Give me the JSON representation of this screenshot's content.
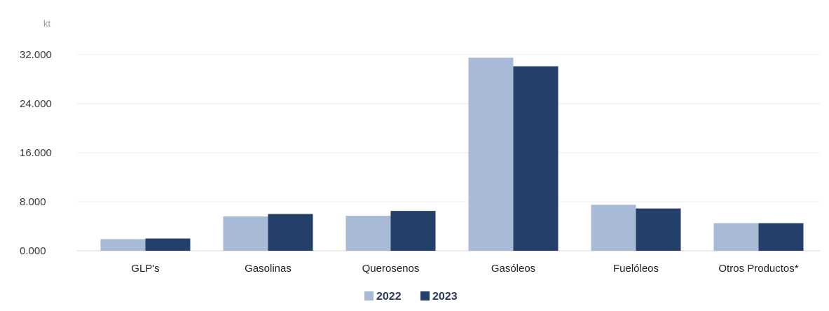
{
  "chart_data": {
    "type": "bar",
    "unit": "kt",
    "categories": [
      "GLP's",
      "Gasolinas",
      "Querosenos",
      "Gasóleos",
      "Fuelóleos",
      "Otros Productos*"
    ],
    "series": [
      {
        "name": "2022",
        "color": "#a9bad6",
        "values": [
          1900,
          5600,
          5700,
          31500,
          7500,
          4500
        ]
      },
      {
        "name": "2023",
        "color": "#253f6b",
        "values": [
          2000,
          6000,
          6500,
          30100,
          6900,
          4500
        ]
      }
    ],
    "yticks": [
      "0.000",
      "8.000",
      "16.000",
      "24.000",
      "32.000"
    ],
    "ytick_values": [
      0,
      8000,
      16000,
      24000,
      32000
    ],
    "ylim": [
      0,
      32000
    ],
    "grid": true,
    "legend_position": "bottom-center"
  }
}
